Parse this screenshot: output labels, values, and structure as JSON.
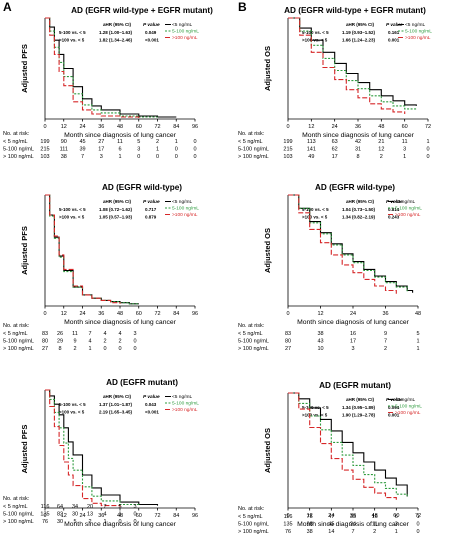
{
  "panel_labels": [
    "A",
    "B"
  ],
  "risk_table_header": "No. at risk:",
  "xlabel": "Month since diagnosis of lung cancer",
  "hr_header": {
    "ahr": "aHR (95% CI)",
    "p": "P value"
  },
  "colors": {
    "lt5": "#000000",
    "mid": "#2e9b3e",
    "gt100": "#d62728"
  },
  "chart_data": [
    {
      "type": "line",
      "title": "AD (EGFR wild-type + EGFR mutant)",
      "ylabel": "Adjusted PFS",
      "xlim": [
        0,
        96
      ],
      "ylim": [
        0,
        1
      ],
      "x_ticks": [
        0,
        12,
        24,
        36,
        48,
        60,
        72,
        84,
        96
      ],
      "hr_table": [
        {
          "comparison": "5-100 vs. < 5",
          "ahr": "1.28 (1.00–1.63)",
          "p": "0.049"
        },
        {
          "comparison": ">100 vs. < 5",
          "ahr": "1.82 (1.34–2.46)",
          "p": "<0.001"
        }
      ],
      "series": [
        {
          "name": "<5 ng/mL",
          "color": "#000000",
          "dash": "",
          "x": [
            0,
            3,
            6,
            9,
            12,
            18,
            24,
            30,
            36,
            48,
            60,
            72,
            84
          ],
          "y": [
            1,
            0.91,
            0.78,
            0.64,
            0.5,
            0.32,
            0.2,
            0.13,
            0.09,
            0.05,
            0.03,
            0.02,
            0.02
          ]
        },
        {
          "name": "5-100 ng/mL",
          "color": "#2e9b3e",
          "dash": "2,1.5",
          "x": [
            0,
            3,
            6,
            9,
            12,
            18,
            24,
            30,
            36,
            48,
            60,
            72
          ],
          "y": [
            1,
            0.87,
            0.71,
            0.56,
            0.42,
            0.25,
            0.14,
            0.09,
            0.06,
            0.03,
            0.02,
            0.02
          ]
        },
        {
          "name": ">100 ng/mL",
          "color": "#d62728",
          "dash": "5,2",
          "x": [
            0,
            3,
            6,
            9,
            12,
            18,
            24,
            30,
            36,
            48,
            60
          ],
          "y": [
            1,
            0.83,
            0.64,
            0.47,
            0.33,
            0.17,
            0.09,
            0.05,
            0.03,
            0.02,
            0.01
          ]
        }
      ],
      "risk": {
        "times": [
          0,
          12,
          24,
          36,
          48,
          60,
          72,
          84,
          96
        ],
        "rows": [
          {
            "label": "< 5 ng/mL",
            "values": [
              "199",
              "90",
              "45",
              "27",
              "11",
              "5",
              "2",
              "1",
              "0"
            ]
          },
          {
            "label": "5-100 ng/mL",
            "values": [
              "215",
              "111",
              "39",
              "17",
              "6",
              "3",
              "1",
              "0",
              "0"
            ]
          },
          {
            "label": "> 100 ng/mL",
            "values": [
              "103",
              "38",
              "7",
              "3",
              "1",
              "0",
              "0",
              "0",
              "0"
            ]
          }
        ]
      }
    },
    {
      "type": "line",
      "title": "AD (EGFR wild-type + EGFR mutant)",
      "ylabel": "Adjusted OS",
      "xlim": [
        0,
        72
      ],
      "ylim": [
        0,
        1
      ],
      "x_ticks": [
        0,
        12,
        24,
        36,
        48,
        60,
        72
      ],
      "hr_table": [
        {
          "comparison": "5-100 vs. < 5",
          "ahr": "1.19 (0.93–1.52)",
          "p": "0.161"
        },
        {
          "comparison": ">100 vs. < 5",
          "ahr": "1.66 (1.24–2.23)",
          "p": "0.001"
        }
      ],
      "series": [
        {
          "name": "<5 ng/mL",
          "color": "#000000",
          "dash": "",
          "x": [
            0,
            6,
            12,
            18,
            24,
            30,
            36,
            42,
            48,
            54,
            60,
            66
          ],
          "y": [
            1,
            0.9,
            0.78,
            0.66,
            0.55,
            0.45,
            0.36,
            0.29,
            0.23,
            0.18,
            0.14,
            0.13
          ]
        },
        {
          "name": "5-100 ng/mL",
          "color": "#2e9b3e",
          "dash": "2,1.5",
          "x": [
            0,
            6,
            12,
            18,
            24,
            30,
            36,
            42,
            48,
            54,
            60,
            66
          ],
          "y": [
            1,
            0.87,
            0.73,
            0.6,
            0.48,
            0.38,
            0.3,
            0.23,
            0.17,
            0.13,
            0.1,
            0.09
          ]
        },
        {
          "name": ">100 ng/mL",
          "color": "#d62728",
          "dash": "5,2",
          "x": [
            0,
            6,
            12,
            18,
            24,
            30,
            36,
            42,
            48,
            54,
            60
          ],
          "y": [
            1,
            0.83,
            0.66,
            0.51,
            0.39,
            0.29,
            0.21,
            0.15,
            0.1,
            0.07,
            0.05
          ]
        }
      ],
      "risk": {
        "times": [
          0,
          12,
          24,
          36,
          48,
          60,
          72
        ],
        "rows": [
          {
            "label": "< 5 ng/mL",
            "values": [
              "199",
              "113",
              "63",
              "42",
              "21",
              "11",
              "1"
            ]
          },
          {
            "label": "5-100 ng/mL",
            "values": [
              "215",
              "141",
              "62",
              "31",
              "12",
              "3",
              "0"
            ]
          },
          {
            "label": "> 100 ng/mL",
            "values": [
              "103",
              "49",
              "17",
              "8",
              "2",
              "1",
              "0"
            ]
          }
        ]
      }
    },
    {
      "type": "line",
      "title": "AD (EGFR wild-type)",
      "ylabel": "Adjusted PFS",
      "xlim": [
        0,
        96
      ],
      "ylim": [
        0,
        1
      ],
      "x_ticks": [
        0,
        12,
        24,
        36,
        48,
        60,
        72,
        84,
        96
      ],
      "hr_table": [
        {
          "comparison": "5-100 vs. < 5",
          "ahr": "1.08 (0.72–1.62)",
          "p": "0.717"
        },
        {
          "comparison": ">100 vs. < 5",
          "ahr": "1.05 (0.57–1.93)",
          "p": "0.879"
        }
      ],
      "series": [
        {
          "name": "<5 ng/mL",
          "color": "#000000",
          "dash": "",
          "x": [
            0,
            3,
            6,
            9,
            12,
            18,
            24,
            30,
            36,
            42,
            48,
            54,
            60
          ],
          "y": [
            1,
            0.82,
            0.62,
            0.45,
            0.32,
            0.17,
            0.1,
            0.07,
            0.05,
            0.04,
            0.03,
            0.02,
            0.02
          ]
        },
        {
          "name": "5-100 ng/mL",
          "color": "#2e9b3e",
          "dash": "2,1.5",
          "x": [
            0,
            3,
            6,
            9,
            12,
            18,
            24,
            30,
            36,
            42,
            48,
            54,
            60
          ],
          "y": [
            1,
            0.81,
            0.61,
            0.44,
            0.31,
            0.17,
            0.1,
            0.07,
            0.05,
            0.04,
            0.03,
            0.02,
            0.02
          ]
        },
        {
          "name": ">100 ng/mL",
          "color": "#d62728",
          "dash": "5,2",
          "x": [
            0,
            3,
            6,
            9,
            12,
            18,
            24,
            30,
            36,
            42,
            48
          ],
          "y": [
            1,
            0.82,
            0.63,
            0.46,
            0.33,
            0.18,
            0.1,
            0.07,
            0.05,
            0.03,
            0.02
          ]
        }
      ],
      "risk": {
        "times": [
          0,
          12,
          24,
          36,
          48,
          60,
          72
        ],
        "rows": [
          {
            "label": "< 5 ng/mL",
            "values": [
              "83",
              "26",
              "11",
              "7",
              "4",
              "4",
              "3"
            ]
          },
          {
            "label": "5-100 ng/mL",
            "values": [
              "80",
              "29",
              "9",
              "4",
              "2",
              "2",
              "0"
            ]
          },
          {
            "label": "> 100 ng/mL",
            "values": [
              "27",
              "8",
              "2",
              "1",
              "0",
              "0",
              "0"
            ]
          }
        ]
      }
    },
    {
      "type": "line",
      "title": "AD (EGFR wild-type)",
      "ylabel": "Adjusted OS",
      "xlim": [
        0,
        48
      ],
      "ylim": [
        0,
        1
      ],
      "x_ticks": [
        0,
        12,
        24,
        36,
        48
      ],
      "hr_table": [
        {
          "comparison": "5-100 vs. < 5",
          "ahr": "1.04 (0.73–1.50)",
          "p": "0.814"
        },
        {
          "comparison": ">100 vs. < 5",
          "ahr": "1.34 (0.82–2.19)",
          "p": "0.243"
        }
      ],
      "series": [
        {
          "name": "<5 ng/mL",
          "color": "#000000",
          "dash": "",
          "x": [
            0,
            4,
            8,
            12,
            16,
            20,
            24,
            28,
            32,
            36,
            40,
            44,
            46
          ],
          "y": [
            1,
            0.88,
            0.76,
            0.66,
            0.56,
            0.47,
            0.4,
            0.33,
            0.27,
            0.22,
            0.18,
            0.14,
            0.12
          ]
        },
        {
          "name": "5-100 ng/mL",
          "color": "#2e9b3e",
          "dash": "2,1.5",
          "x": [
            0,
            4,
            8,
            12,
            16,
            20,
            24,
            28,
            32,
            36,
            40,
            44
          ],
          "y": [
            1,
            0.88,
            0.75,
            0.65,
            0.55,
            0.46,
            0.39,
            0.32,
            0.26,
            0.21,
            0.17,
            0.13
          ]
        },
        {
          "name": ">100 ng/mL",
          "color": "#d62728",
          "dash": "5,2",
          "x": [
            0,
            4,
            8,
            12,
            16,
            20,
            24,
            28,
            32,
            36,
            40
          ],
          "y": [
            1,
            0.84,
            0.69,
            0.57,
            0.46,
            0.37,
            0.3,
            0.24,
            0.18,
            0.14,
            0.11
          ]
        }
      ],
      "risk": {
        "times": [
          0,
          12,
          24,
          36,
          48
        ],
        "rows": [
          {
            "label": "< 5 ng/mL",
            "values": [
              "83",
              "38",
              "16",
              "9",
              "5"
            ]
          },
          {
            "label": "5-100 ng/mL",
            "values": [
              "80",
              "43",
              "17",
              "7",
              "1"
            ]
          },
          {
            "label": "> 100 ng/mL",
            "values": [
              "27",
              "10",
              "3",
              "2",
              "1"
            ]
          }
        ]
      }
    },
    {
      "type": "line",
      "title": "AD (EGFR mutant)",
      "ylabel": "Adjusted PFS",
      "xlim": [
        0,
        96
      ],
      "ylim": [
        0,
        1
      ],
      "x_ticks": [
        0,
        12,
        24,
        36,
        48,
        60,
        72,
        84,
        96
      ],
      "hr_table": [
        {
          "comparison": "5-100 vs. < 5",
          "ahr": "1.37 (1.01–1.87)",
          "p": "0.043"
        },
        {
          "comparison": ">100 vs. < 5",
          "ahr": "2.19 (1.65–3.45)",
          "p": "<0.001"
        }
      ],
      "series": [
        {
          "name": "<5 ng/mL",
          "color": "#000000",
          "dash": "",
          "x": [
            0,
            3,
            6,
            9,
            12,
            15,
            18,
            24,
            30,
            36,
            48,
            60,
            72
          ],
          "y": [
            1,
            0.95,
            0.88,
            0.79,
            0.68,
            0.56,
            0.45,
            0.28,
            0.17,
            0.11,
            0.05,
            0.03,
            0.02
          ]
        },
        {
          "name": "5-100 ng/mL",
          "color": "#2e9b3e",
          "dash": "2,1.5",
          "x": [
            0,
            3,
            6,
            9,
            12,
            15,
            18,
            24,
            30,
            36,
            48,
            60
          ],
          "y": [
            1,
            0.92,
            0.81,
            0.68,
            0.55,
            0.42,
            0.32,
            0.18,
            0.1,
            0.06,
            0.03,
            0.02
          ]
        },
        {
          "name": ">100 ng/mL",
          "color": "#d62728",
          "dash": "5,2",
          "x": [
            0,
            3,
            6,
            9,
            12,
            15,
            18,
            24,
            30,
            36,
            48
          ],
          "y": [
            1,
            0.86,
            0.69,
            0.53,
            0.39,
            0.28,
            0.19,
            0.08,
            0.04,
            0.02,
            0.01
          ]
        }
      ],
      "risk": {
        "times": [
          0,
          12,
          24,
          36,
          48,
          60,
          72
        ],
        "rows": [
          {
            "label": "< 5 ng/mL",
            "values": [
              "116",
              "64",
              "34",
              "20",
              "7",
              "5",
              "3"
            ]
          },
          {
            "label": "5-100 ng/mL",
            "values": [
              "135",
              "82",
              "30",
              "13",
              "4",
              "1",
              "0"
            ]
          },
          {
            "label": "> 100 ng/mL",
            "values": [
              "76",
              "30",
              "5",
              "2",
              "1",
              "0",
              "0"
            ]
          }
        ]
      }
    },
    {
      "type": "line",
      "title": "AD (EGFR mutant)",
      "ylabel": "Adjusted OS",
      "xlim": [
        0,
        72
      ],
      "ylim": [
        0,
        1
      ],
      "x_ticks": [
        0,
        12,
        24,
        36,
        48,
        60,
        72
      ],
      "hr_table": [
        {
          "comparison": "5-100 vs. < 5",
          "ahr": "1.34 (0.95–1.89)",
          "p": "0.094"
        },
        {
          "comparison": ">100 vs. < 5",
          "ahr": "1.90 (1.29–2.78)",
          "p": "0.001"
        }
      ],
      "series": [
        {
          "name": "<5 ng/mL",
          "color": "#000000",
          "dash": "",
          "x": [
            0,
            6,
            12,
            18,
            24,
            30,
            36,
            42,
            48,
            54,
            60,
            66
          ],
          "y": [
            1,
            0.95,
            0.87,
            0.77,
            0.67,
            0.57,
            0.48,
            0.4,
            0.33,
            0.26,
            0.2,
            0.1
          ]
        },
        {
          "name": "5-100 ng/mL",
          "color": "#2e9b3e",
          "dash": "2,1.5",
          "x": [
            0,
            6,
            12,
            18,
            24,
            30,
            36,
            42,
            48,
            54,
            60,
            66
          ],
          "y": [
            1,
            0.91,
            0.8,
            0.68,
            0.57,
            0.46,
            0.37,
            0.29,
            0.22,
            0.17,
            0.12,
            0.1
          ]
        },
        {
          "name": ">100 ng/mL",
          "color": "#d62728",
          "dash": "5,2",
          "x": [
            0,
            6,
            12,
            18,
            24,
            30,
            36,
            42,
            48,
            54,
            60
          ],
          "y": [
            1,
            0.86,
            0.7,
            0.56,
            0.43,
            0.33,
            0.25,
            0.18,
            0.13,
            0.09,
            0.07
          ]
        }
      ],
      "risk": {
        "times": [
          0,
          12,
          24,
          36,
          48,
          60,
          72
        ],
        "rows": [
          {
            "label": "< 5 ng/mL",
            "values": [
              "116",
              "75",
              "47",
              "33",
              "16",
              "6",
              "1"
            ]
          },
          {
            "label": "5-100 ng/mL",
            "values": [
              "135",
              "98",
              "45",
              "24",
              "11",
              "3",
              "0"
            ]
          },
          {
            "label": "> 100 ng/mL",
            "values": [
              "76",
              "38",
              "14",
              "7",
              "2",
              "1",
              "0"
            ]
          }
        ]
      }
    }
  ]
}
